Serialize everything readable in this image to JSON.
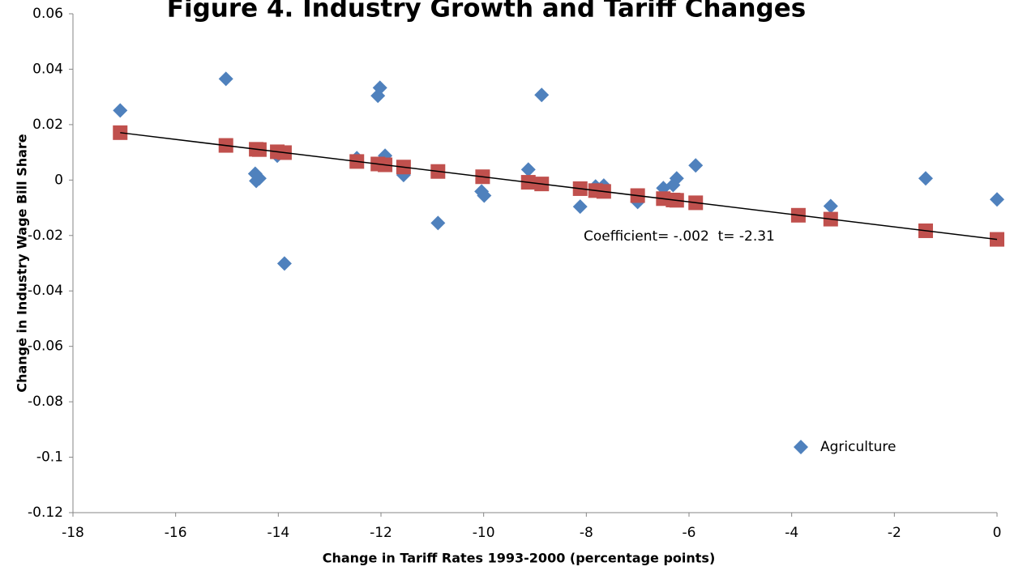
{
  "chart_data": {
    "type": "scatter",
    "title": "Figure 4. Industry Growth and Tariff Changes",
    "x_label": "Change in Tariff Rates 1993-2000 (percentage points)",
    "y_label": "Change in Industry Wage Bill Share",
    "annotation": "Coefficient= -.002  t= -2.31",
    "xlim": [
      -18,
      0
    ],
    "xticks": [
      -18,
      -16,
      -14,
      -12,
      -10,
      -8,
      -6,
      -4,
      -2,
      0
    ],
    "ylim": [
      -0.12,
      0.06
    ],
    "yticks": [
      0.06,
      0.04,
      0.02,
      0,
      -0.02,
      -0.04,
      -0.06,
      -0.08,
      -0.1,
      -0.12
    ],
    "legend": "bottom-right",
    "series": [
      {
        "name": "Agriculture",
        "color": "#4f81bd",
        "marker": "diamond",
        "x": [
          -17.08,
          -15.02,
          -14.45,
          -14.43,
          -14.37,
          -14.02,
          -13.88,
          -12.47,
          -12.06,
          -12.02,
          -11.92,
          -11.56,
          -10.89,
          -10.04,
          -9.99,
          -9.13,
          -8.87,
          -8.12,
          -7.82,
          -7.66,
          -7.0,
          -6.5,
          -6.31,
          -6.24,
          -5.87,
          -3.24,
          -1.39,
          0
        ],
        "values": [
          0.0251,
          0.0365,
          0.0023,
          -0.0003,
          0.0006,
          0.0088,
          -0.0301,
          0.0079,
          0.0304,
          0.0333,
          0.0088,
          0.0018,
          -0.0155,
          -0.0041,
          -0.0056,
          0.0038,
          0.0307,
          -0.0096,
          -0.0023,
          -0.002,
          -0.0079,
          -0.0029,
          -0.0018,
          0.0006,
          0.0053,
          -0.0094,
          0.0006,
          -0.007
        ]
      },
      {
        "color": "#c0504d",
        "marker": "square",
        "trendline": true,
        "x": [
          -17.08,
          -15.02,
          -14.43,
          -14.37,
          -14.02,
          -13.88,
          -12.47,
          -12.06,
          -11.92,
          -11.56,
          -10.89,
          -10.02,
          -9.13,
          -8.87,
          -8.12,
          -7.82,
          -7.66,
          -7.0,
          -6.5,
          -6.31,
          -6.24,
          -5.87,
          -3.87,
          -3.24,
          -1.39,
          0
        ],
        "values": [
          0.0171,
          0.0125,
          0.0111,
          0.011,
          0.0102,
          0.0099,
          0.0067,
          0.0058,
          0.0055,
          0.0047,
          0.0031,
          0.0012,
          -0.0008,
          -0.0014,
          -0.0031,
          -0.0038,
          -0.0041,
          -0.0056,
          -0.0067,
          -0.0072,
          -0.0073,
          -0.0082,
          -0.0127,
          -0.0141,
          -0.0183,
          -0.0214
        ]
      }
    ]
  }
}
